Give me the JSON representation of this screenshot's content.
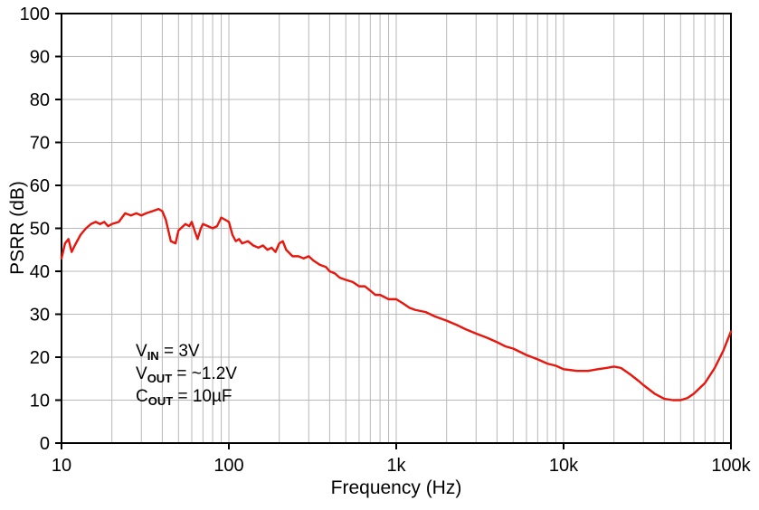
{
  "chart": {
    "grid_color": "#b8b8b8",
    "axis_color": "#000000",
    "background": "#ffffff"
  },
  "chart_data": {
    "type": "line",
    "x_scale": "log",
    "xlim": [
      10,
      100000
    ],
    "ylim": [
      0,
      100
    ],
    "xlabel": "Frequency (Hz)",
    "ylabel": "PSRR (dB)",
    "grid": true,
    "x_ticks": [
      {
        "value": 10,
        "label": "10"
      },
      {
        "value": 100,
        "label": "100"
      },
      {
        "value": 1000,
        "label": "1k"
      },
      {
        "value": 10000,
        "label": "10k"
      },
      {
        "value": 100000,
        "label": "100k"
      }
    ],
    "y_ticks": [
      {
        "value": 0,
        "label": "0"
      },
      {
        "value": 10,
        "label": "10"
      },
      {
        "value": 20,
        "label": "20"
      },
      {
        "value": 30,
        "label": "30"
      },
      {
        "value": 40,
        "label": "40"
      },
      {
        "value": 50,
        "label": "50"
      },
      {
        "value": 60,
        "label": "60"
      },
      {
        "value": 70,
        "label": "70"
      },
      {
        "value": 80,
        "label": "80"
      },
      {
        "value": 90,
        "label": "90"
      },
      {
        "value": 100,
        "label": "100"
      }
    ],
    "series": [
      {
        "name": "PSRR",
        "color": "#e8160c",
        "x": [
          10,
          10.5,
          11,
          11.5,
          12,
          13,
          14,
          15,
          16,
          17,
          18,
          19,
          20,
          22,
          24,
          26,
          28,
          30,
          32,
          35,
          38,
          40,
          42,
          45,
          48,
          50,
          55,
          58,
          60,
          63,
          65,
          68,
          70,
          75,
          80,
          85,
          90,
          95,
          100,
          105,
          110,
          115,
          120,
          130,
          140,
          150,
          160,
          170,
          180,
          190,
          200,
          210,
          220,
          240,
          260,
          280,
          300,
          320,
          350,
          380,
          400,
          430,
          460,
          500,
          550,
          600,
          650,
          700,
          750,
          800,
          850,
          900,
          1000,
          1100,
          1200,
          1300,
          1500,
          1700,
          2000,
          2300,
          2600,
          3000,
          3500,
          4000,
          4500,
          5000,
          6000,
          7000,
          8000,
          9000,
          10000,
          11000,
          12000,
          14000,
          16000,
          18000,
          20000,
          22000,
          25000,
          28000,
          30000,
          35000,
          40000,
          45000,
          50000,
          55000,
          60000,
          70000,
          80000,
          90000,
          100000
        ],
        "y": [
          43,
          46.5,
          47.5,
          44.5,
          46,
          48.5,
          50,
          51,
          51.5,
          51,
          51.5,
          50.5,
          51,
          51.5,
          53.5,
          53,
          53.5,
          53,
          53.5,
          54,
          54.5,
          54,
          52,
          47,
          46.5,
          49.5,
          51,
          50.5,
          51.5,
          49,
          47.5,
          50,
          51,
          50.5,
          50,
          50.5,
          52.5,
          52,
          51.5,
          48.5,
          47,
          47.5,
          46.5,
          47,
          46,
          45.5,
          46,
          45,
          45.5,
          44.5,
          46.5,
          47,
          45,
          43.5,
          43.5,
          43,
          43.5,
          42.5,
          41.5,
          41,
          40,
          39.5,
          38.5,
          38,
          37.5,
          36.5,
          36.5,
          35.5,
          34.5,
          34.5,
          34,
          33.5,
          33.5,
          32.5,
          31.5,
          31,
          30.5,
          29.5,
          28.5,
          27.5,
          26.5,
          25.5,
          24.5,
          23.5,
          22.5,
          22,
          20.5,
          19.5,
          18.5,
          18,
          17.2,
          17,
          16.8,
          16.8,
          17.2,
          17.5,
          17.8,
          17.5,
          16,
          14.5,
          13.5,
          11.5,
          10.3,
          10,
          10,
          10.5,
          11.5,
          14,
          17.5,
          21.5,
          26
        ]
      }
    ],
    "annotations": [
      {
        "pre": "V",
        "sub": "IN",
        "post": " = 3V"
      },
      {
        "pre": "V",
        "sub": "OUT",
        "post": " = ~1.2V"
      },
      {
        "pre": "C",
        "sub": "OUT",
        "post": " = 10µF"
      }
    ]
  }
}
